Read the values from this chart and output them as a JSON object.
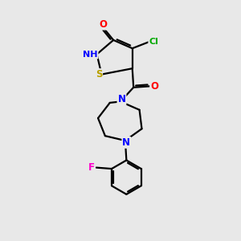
{
  "bg_color": "#e8e8e8",
  "atom_colors": {
    "O": "#ff0000",
    "N": "#0000ff",
    "S": "#b8a000",
    "Cl": "#00aa00",
    "F": "#ff00cc",
    "C": "#000000",
    "H": "#666666"
  },
  "bond_color": "#000000",
  "bond_width": 1.6
}
